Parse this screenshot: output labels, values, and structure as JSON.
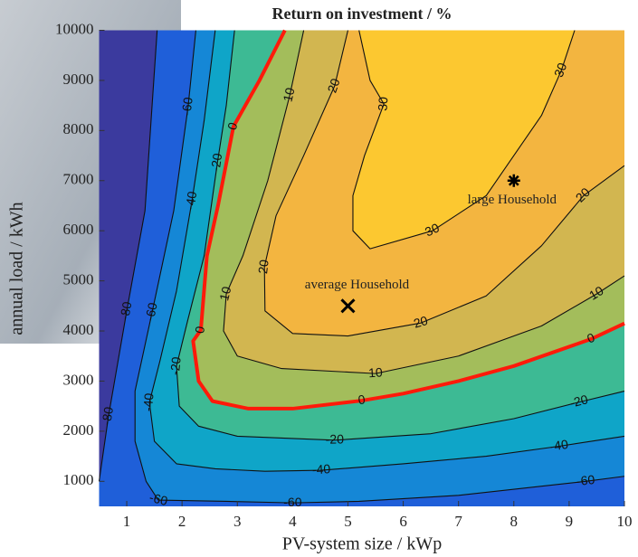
{
  "chart_data": {
    "type": "contour",
    "title": "Return on investment / %",
    "x_label": "PV-system size / kWp",
    "y_label": "annual load / kWh",
    "xlim": [
      0.5,
      10
    ],
    "ylim": [
      500,
      10000
    ],
    "xticks": [
      1,
      2,
      3,
      4,
      5,
      6,
      7,
      8,
      9,
      10
    ],
    "yticks": [
      1000,
      2000,
      3000,
      4000,
      5000,
      6000,
      7000,
      8000,
      9000,
      10000
    ],
    "base_color": "#3b3a9e",
    "contours": [
      {
        "level": -80,
        "color": "#1f5fd9",
        "line_color": "#111111",
        "x": [
          1.55,
          1.33,
          1.0,
          0.67,
          0.5
        ],
        "y": [
          10000,
          6400,
          4400,
          2300,
          1000
        ]
      },
      {
        "level": -60,
        "color": "#1587d6",
        "line_color": "#111111",
        "x": [
          2.25,
          2.11,
          1.85,
          1.46,
          1.15,
          1.15,
          1.35,
          1.57,
          2.8,
          4.0,
          5.2,
          7.0,
          9.3,
          10.0
        ],
        "y": [
          10000,
          8480,
          6400,
          4380,
          2800,
          1800,
          1000,
          625,
          600,
          570,
          600,
          720,
          1000,
          1100
        ]
      },
      {
        "level": -40,
        "color": "#0fa5c8",
        "line_color": "#111111",
        "x": [
          2.6,
          2.4,
          2.18,
          1.9,
          1.6,
          1.41,
          1.5,
          1.9,
          2.6,
          3.5,
          4.52,
          6.0,
          7.5,
          8.82,
          10.0
        ],
        "y": [
          10000,
          8200,
          6600,
          4800,
          3400,
          2576,
          1800,
          1350,
          1250,
          1200,
          1220,
          1350,
          1500,
          1700,
          1900
        ]
      },
      {
        "level": -20,
        "color": "#3dba94",
        "line_color": "#111111",
        "x": [
          2.95,
          2.8,
          2.64,
          2.4,
          2.1,
          1.9,
          1.95,
          2.3,
          3.0,
          4.76,
          6.5,
          8.0,
          9.18,
          10.0
        ],
        "y": [
          10000,
          8500,
          7360,
          5500,
          4200,
          3300,
          2500,
          2100,
          1900,
          1820,
          1950,
          2250,
          2580,
          2800
        ]
      },
      {
        "level": 0,
        "color": "#a3bd5b",
        "line_color": "#ff1a0a",
        "x": [
          3.86,
          3.4,
          2.93,
          2.65,
          2.45,
          2.34,
          2.2,
          2.3,
          2.55,
          3.2,
          4.0,
          5.25,
          6.0,
          7.0,
          8.0,
          9.4,
          10.0
        ],
        "y": [
          10000,
          9000,
          8080,
          6500,
          5500,
          4020,
          3800,
          3000,
          2600,
          2450,
          2450,
          2610,
          2750,
          3000,
          3300,
          3840,
          4150
        ]
      },
      {
        "level": 10,
        "color": "#d2b650",
        "line_color": "#111111",
        "x": [
          4.2,
          3.95,
          3.55,
          3.1,
          2.8,
          2.75,
          3.0,
          3.8,
          5.5,
          7.0,
          8.5,
          9.5,
          10.0
        ],
        "y": [
          10000,
          8710,
          7000,
          5500,
          4740,
          4000,
          3500,
          3250,
          3150,
          3500,
          4100,
          4740,
          5100
        ]
      },
      {
        "level": 20,
        "color": "#f3b540",
        "line_color": "#111111",
        "x": [
          5.0,
          4.76,
          4.2,
          3.7,
          3.49,
          3.5,
          4.0,
          5.0,
          6.32,
          7.5,
          8.5,
          9.26,
          10.0
        ],
        "y": [
          10000,
          8890,
          7500,
          6300,
          5280,
          4400,
          3950,
          3900,
          4160,
          4700,
          5700,
          6700,
          7300
        ]
      },
      {
        "level": 30,
        "color": "#fcc830",
        "line_color": "#111111",
        "x": [
          5.2,
          5.4,
          5.65,
          5.3,
          5.09,
          5.09,
          5.4,
          6.53,
          7.5,
          8.5,
          8.86,
          9.1
        ],
        "y": [
          10000,
          9000,
          8530,
          7500,
          6700,
          6000,
          5640,
          6000,
          6700,
          8300,
          9200,
          10000
        ]
      }
    ],
    "points": [
      {
        "label": "average Household",
        "x": 5,
        "y": 4500,
        "marker": "x"
      },
      {
        "label": "large Household",
        "x": 8,
        "y": 7000,
        "marker": "*"
      }
    ]
  }
}
